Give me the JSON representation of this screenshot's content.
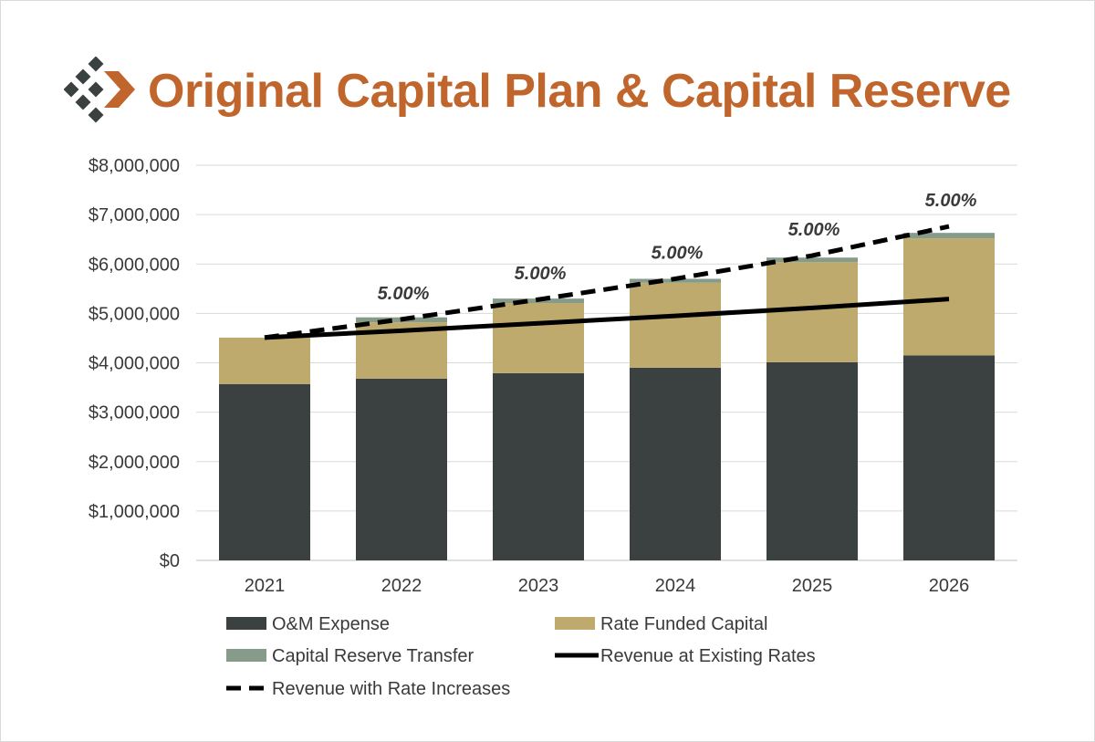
{
  "page": {
    "title": "Original Capital Plan & Capital Reserve",
    "accent_color": "#c0662d",
    "logo_icon": "diamond-cluster-arrow-icon"
  },
  "chart_data": {
    "type": "bar",
    "stacked": true,
    "categories": [
      "2021",
      "2022",
      "2023",
      "2024",
      "2025",
      "2026"
    ],
    "ylim": [
      0,
      8000000
    ],
    "yticks": [
      "$0",
      "$1,000,000",
      "$2,000,000",
      "$3,000,000",
      "$4,000,000",
      "$5,000,000",
      "$6,000,000",
      "$7,000,000",
      "$8,000,000"
    ],
    "grid": true,
    "legend_position": "bottom",
    "series": [
      {
        "name": "O&M Expense",
        "kind": "bar",
        "color": "#3b4040",
        "values": [
          3570000,
          3680000,
          3790000,
          3900000,
          4010000,
          4150000
        ]
      },
      {
        "name": "Rate Funded Capital",
        "kind": "bar",
        "color": "#bfaa6e",
        "values": [
          940000,
          1140000,
          1420000,
          1720000,
          2030000,
          2370000
        ]
      },
      {
        "name": "Capital Reserve Transfer",
        "kind": "bar",
        "color": "#879b8a",
        "values": [
          0,
          100000,
          90000,
          80000,
          90000,
          110000
        ]
      },
      {
        "name": "Revenue at Existing Rates",
        "kind": "line",
        "style": "solid",
        "color": "#000000",
        "values": [
          4510000,
          4650000,
          4800000,
          4950000,
          5110000,
          5290000
        ]
      },
      {
        "name": "Revenue with Rate Increases",
        "kind": "line",
        "style": "dashed",
        "color": "#000000",
        "values": [
          4510000,
          4880000,
          5280000,
          5700000,
          6170000,
          6760000
        ]
      }
    ],
    "annotations": [
      {
        "category": "2022",
        "text": "5.00%"
      },
      {
        "category": "2023",
        "text": "5.00%"
      },
      {
        "category": "2024",
        "text": "5.00%"
      },
      {
        "category": "2025",
        "text": "5.00%"
      },
      {
        "category": "2026",
        "text": "5.00%"
      }
    ]
  }
}
